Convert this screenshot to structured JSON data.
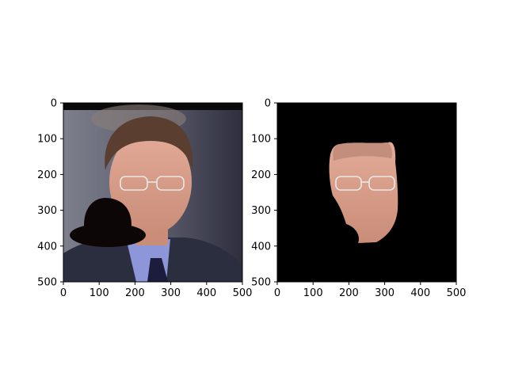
{
  "chart_data": [
    {
      "type": "image",
      "title": "",
      "xlabel": "",
      "ylabel": "",
      "xlim": [
        0,
        500
      ],
      "ylim": [
        500,
        0
      ],
      "xticks": [
        0,
        100,
        200,
        300,
        400,
        500
      ],
      "yticks": [
        0,
        100,
        200,
        300,
        400,
        500
      ],
      "content": "photo-with-occlusion",
      "occluder_icon": "bowler-hat-icon",
      "colors": {
        "background": "#545464",
        "face": "#d9a08a",
        "occluder": "#0d0606",
        "suit": "#2b2e3f",
        "shirt": "#8c96d8",
        "tie": "#1c1d3c"
      }
    },
    {
      "type": "image",
      "title": "",
      "xlabel": "",
      "ylabel": "",
      "xlim": [
        0,
        500
      ],
      "ylim": [
        500,
        0
      ],
      "xticks": [
        0,
        100,
        200,
        300,
        400,
        500
      ],
      "yticks": [
        0,
        100,
        200,
        300,
        400,
        500
      ],
      "content": "segmented-face-mask",
      "colors": {
        "background": "#000000",
        "face": "#d9a08a"
      }
    }
  ]
}
